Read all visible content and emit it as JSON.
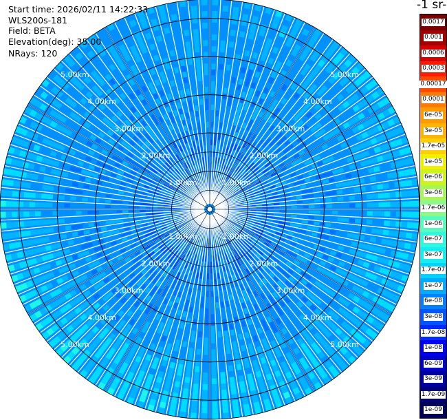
{
  "header": {
    "start_time": "Start time: 2026/02/11 14:22:33",
    "instrument": "WLS200s-181",
    "field": "Field: BETA",
    "elevation": "Elevation(deg): 35.00",
    "nrays": "NRays: 120"
  },
  "colorbar": {
    "title": "-1 sr-",
    "labels": [
      "0.0017",
      "0.001",
      "0.0006",
      "0.0003",
      "0.00017",
      "0.0001",
      "6e-05",
      "3e-05",
      "1.7e-05",
      "1e-05",
      "6e-06",
      "3e-06",
      "1.7e-06",
      "1e-06",
      "6e-07",
      "3e-07",
      "1.7e-07",
      "1e-07",
      "6e-08",
      "3e-08",
      "1.7e-08",
      "1e-08",
      "6e-09",
      "3e-09",
      "1.7e-09",
      "1e-09"
    ],
    "colors": [
      "#7a0000",
      "#a50000",
      "#d40000",
      "#ff1a00",
      "#ff4a00",
      "#ff7a00",
      "#ff9a00",
      "#ffb400",
      "#ffd000",
      "#f0f000",
      "#ccf31e",
      "#a8f55a",
      "#8cf88c",
      "#58fbbe",
      "#2ef8e0",
      "#14eef0",
      "#00d2ff",
      "#00aaff",
      "#0080ff",
      "#0055ff",
      "#002bff",
      "#0000ee",
      "#0000c8",
      "#0000a0",
      "#000078",
      "#00005a"
    ]
  },
  "chart_data": {
    "type": "heatmap",
    "subtype": "polar PPI scan",
    "center": "radar site",
    "rmax_km": 5.5,
    "ring_labels": [
      "1.00km",
      "2.00km",
      "3.00km",
      "4.00km",
      "5.00km"
    ],
    "ring_values_km": [
      1,
      2,
      3,
      4,
      5
    ],
    "nrays": 120,
    "colormap": "jet",
    "colorscale": "log",
    "color_range": [
      1e-09,
      0.0017
    ],
    "dominant_values": {
      "inner_core": 3e-08,
      "mid_range": 6e-08,
      "outer_edge": 1.7e-07
    },
    "grid": true
  }
}
